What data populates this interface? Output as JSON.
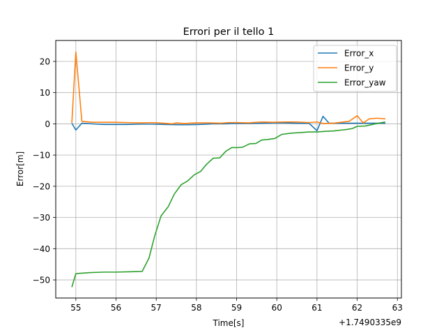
{
  "chart_data": {
    "type": "line",
    "title": "Errori per il tello 1",
    "xlabel": "Time[s]",
    "ylabel": "Error[m]",
    "x_offset_label": "+1.7490335e9",
    "xlim": [
      54.5,
      63.1
    ],
    "ylim": [
      -55.8,
      26.7
    ],
    "xticks": [
      55,
      56,
      57,
      58,
      59,
      60,
      61,
      62,
      63
    ],
    "yticks": [
      20,
      10,
      0,
      -10,
      -20,
      -30,
      -40,
      -50
    ],
    "ytick_labels": [
      "20",
      "10",
      "0",
      "−10",
      "−20",
      "−30",
      "−40",
      "−50"
    ],
    "grid": true,
    "legend_position": "upper right",
    "series": [
      {
        "name": "Error_x",
        "color": "#1f77b4",
        "x": [
          54.9,
          55.0,
          55.15,
          55.4,
          55.7,
          56.0,
          56.3,
          56.6,
          56.9,
          57.2,
          57.5,
          57.8,
          58.1,
          58.4,
          58.7,
          59.0,
          59.3,
          59.6,
          59.9,
          60.2,
          60.5,
          60.8,
          61.0,
          61.15,
          61.3,
          61.6,
          61.9,
          62.2,
          62.5,
          62.7
        ],
        "y": [
          0.2,
          -2.0,
          0.2,
          0.0,
          -0.2,
          -0.2,
          -0.2,
          -0.1,
          -0.1,
          -0.2,
          -0.3,
          -0.3,
          -0.2,
          0.0,
          0.0,
          0.1,
          0.1,
          0.2,
          0.3,
          0.3,
          0.2,
          0.2,
          -2.2,
          2.4,
          0.2,
          0.2,
          0.2,
          0.2,
          0.2,
          0.2
        ]
      },
      {
        "name": "Error_y",
        "color": "#ff7f0e",
        "x": [
          54.9,
          55.0,
          55.15,
          55.4,
          55.7,
          56.0,
          56.3,
          56.6,
          56.9,
          57.2,
          57.4,
          57.5,
          57.7,
          58.0,
          58.3,
          58.6,
          58.8,
          59.0,
          59.3,
          59.6,
          59.9,
          60.2,
          60.5,
          60.8,
          61.0,
          61.15,
          61.4,
          61.8,
          62.0,
          62.15,
          62.3,
          62.5,
          62.7
        ],
        "y": [
          0.3,
          23.0,
          0.8,
          0.5,
          0.5,
          0.5,
          0.4,
          0.3,
          0.4,
          0.2,
          0.0,
          0.3,
          0.1,
          0.3,
          0.3,
          0.2,
          0.4,
          0.4,
          0.3,
          0.6,
          0.5,
          0.6,
          0.6,
          0.4,
          0.6,
          0.1,
          0.2,
          0.8,
          2.6,
          0.3,
          1.6,
          1.8,
          1.6
        ]
      },
      {
        "name": "Error_yaw",
        "color": "#2ca02c",
        "x": [
          54.9,
          55.0,
          55.3,
          55.7,
          56.0,
          56.3,
          56.65,
          56.82,
          56.96,
          57.12,
          57.3,
          57.45,
          57.62,
          57.78,
          57.95,
          58.1,
          58.25,
          58.42,
          58.58,
          58.73,
          58.88,
          59.02,
          59.15,
          59.32,
          59.48,
          59.62,
          59.78,
          59.95,
          60.12,
          60.35,
          60.6,
          60.8,
          61.0,
          61.2,
          61.4,
          61.6,
          61.75,
          61.88,
          62.0,
          62.2,
          62.45,
          62.7
        ],
        "y": [
          -52.3,
          -48.0,
          -47.7,
          -47.5,
          -47.5,
          -47.4,
          -47.3,
          -43.0,
          -36.0,
          -29.5,
          -26.5,
          -22.5,
          -19.5,
          -18.3,
          -16.3,
          -15.3,
          -13.0,
          -11.0,
          -10.9,
          -8.8,
          -7.6,
          -7.6,
          -7.5,
          -6.4,
          -6.3,
          -5.2,
          -5.0,
          -4.7,
          -3.4,
          -3.0,
          -2.8,
          -2.6,
          -2.6,
          -2.4,
          -2.3,
          -2.0,
          -1.8,
          -1.5,
          -0.8,
          -0.7,
          0.0,
          0.6
        ]
      }
    ]
  }
}
